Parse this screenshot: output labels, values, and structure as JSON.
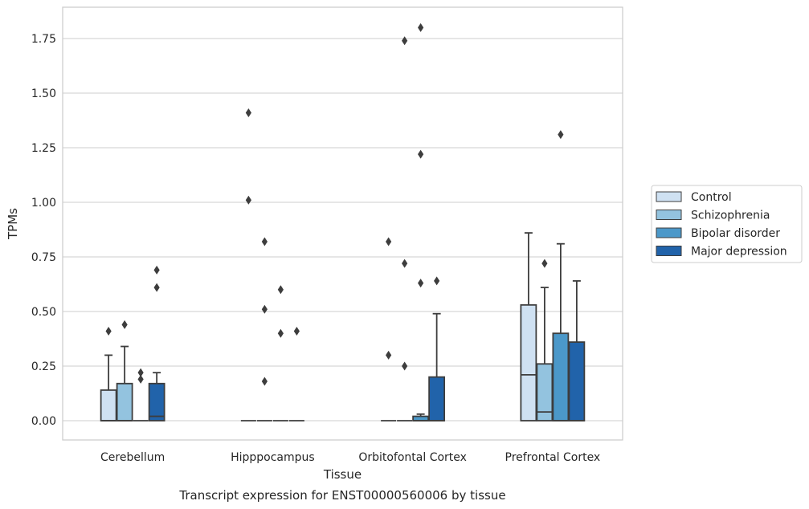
{
  "chart_data": {
    "type": "boxplot",
    "caption": "Transcript expression for ENST00000560006 by tissue",
    "xlabel": "Tissue",
    "ylabel": "TPMs",
    "ylim": [
      -0.09,
      1.89
    ],
    "yticks": [
      "0.00",
      "0.25",
      "0.50",
      "0.75",
      "1.00",
      "1.25",
      "1.50",
      "1.75"
    ],
    "ytick_values": [
      0,
      0.25,
      0.5,
      0.75,
      1.0,
      1.25,
      1.5,
      1.75
    ],
    "grid": true,
    "legend_position": "right",
    "categories": [
      "Cerebellum",
      "Hipppocampus",
      "Orbitofontal Cortex",
      "Prefrontal Cortex"
    ],
    "series": [
      {
        "name": "Control",
        "color": "#cfe1f2",
        "boxes": [
          {
            "q1": 0,
            "median": 0,
            "q3": 0.14,
            "whislo": 0,
            "whishi": 0.3,
            "fliers": [
              0.41
            ]
          },
          {
            "q1": 0,
            "median": 0,
            "q3": 0,
            "whislo": 0,
            "whishi": 0,
            "fliers": [
              1.41,
              1.01
            ]
          },
          {
            "q1": 0,
            "median": 0,
            "q3": 0,
            "whislo": 0,
            "whishi": 0,
            "fliers": [
              0.82,
              0.3
            ]
          },
          {
            "q1": 0,
            "median": 0.21,
            "q3": 0.53,
            "whislo": 0,
            "whishi": 0.86,
            "fliers": []
          }
        ]
      },
      {
        "name": "Schizophrenia",
        "color": "#93c3df",
        "boxes": [
          {
            "q1": 0,
            "median": 0,
            "q3": 0.17,
            "whislo": 0,
            "whishi": 0.34,
            "fliers": [
              0.44
            ]
          },
          {
            "q1": 0,
            "median": 0,
            "q3": 0,
            "whislo": 0,
            "whishi": 0,
            "fliers": [
              0.82,
              0.51,
              0.18
            ]
          },
          {
            "q1": 0,
            "median": 0,
            "q3": 0,
            "whislo": 0,
            "whishi": 0,
            "fliers": [
              1.74,
              0.72,
              0.25
            ]
          },
          {
            "q1": 0,
            "median": 0.04,
            "q3": 0.26,
            "whislo": 0,
            "whishi": 0.61,
            "fliers": [
              0.72
            ]
          }
        ]
      },
      {
        "name": "Bipolar disorder",
        "color": "#4b98c9",
        "boxes": [
          {
            "q1": 0,
            "median": 0,
            "q3": 0,
            "whislo": 0,
            "whishi": 0,
            "fliers": [
              0.22,
              0.19
            ]
          },
          {
            "q1": 0,
            "median": 0,
            "q3": 0,
            "whislo": 0,
            "whishi": 0,
            "fliers": [
              0.6,
              0.4
            ]
          },
          {
            "q1": 0,
            "median": 0,
            "q3": 0.02,
            "whislo": 0,
            "whishi": 0.03,
            "fliers": [
              1.8,
              1.22,
              0.63
            ]
          },
          {
            "q1": 0,
            "median": 0,
            "q3": 0.4,
            "whislo": 0,
            "whishi": 0.81,
            "fliers": [
              1.31
            ]
          }
        ]
      },
      {
        "name": "Major depression",
        "color": "#2163aa",
        "boxes": [
          {
            "q1": 0,
            "median": 0.02,
            "q3": 0.17,
            "whislo": 0,
            "whishi": 0.22,
            "fliers": [
              0.69,
              0.61
            ]
          },
          {
            "q1": 0,
            "median": 0,
            "q3": 0,
            "whislo": 0,
            "whishi": 0,
            "fliers": [
              0.41
            ]
          },
          {
            "q1": 0,
            "median": 0,
            "q3": 0.2,
            "whislo": 0,
            "whishi": 0.49,
            "fliers": [
              0.64
            ]
          },
          {
            "q1": 0,
            "median": 0,
            "q3": 0.36,
            "whislo": 0,
            "whishi": 0.64,
            "fliers": []
          }
        ]
      }
    ]
  }
}
